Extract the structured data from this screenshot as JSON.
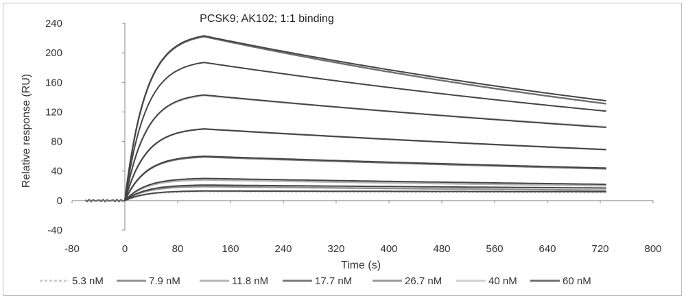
{
  "chart_data": {
    "type": "line",
    "title": "PCSK9; AK102; 1:1 binding",
    "xlabel": "Time (s)",
    "ylabel": "Relative response (RU)",
    "xlim": [
      -80,
      800
    ],
    "ylim": [
      -40,
      240
    ],
    "xticks": [
      -80,
      0,
      80,
      160,
      240,
      320,
      400,
      480,
      560,
      640,
      720,
      800
    ],
    "yticks": [
      -40,
      0,
      40,
      80,
      120,
      160,
      200,
      240
    ],
    "grid": false,
    "legend_position": "bottom",
    "association_end": 120,
    "run_end": 730,
    "series": [
      {
        "name": "5.3 nM",
        "color": "#c8c8c8",
        "dashed": true,
        "plateau": 12,
        "end": 11
      },
      {
        "name": "7.9 nM",
        "color": "#8f8f8f",
        "dashed": false,
        "plateau": 19,
        "end": 14
      },
      {
        "name": "11.8 nM",
        "color": "#b4b4b4",
        "dashed": false,
        "plateau": 28,
        "end": 20
      },
      {
        "name": "17.7 nM",
        "color": "#7a7a7a",
        "dashed": false,
        "plateau": 59,
        "end": 43
      },
      {
        "name": "26.7 nM",
        "color": "#9a9a9a",
        "dashed": false,
        "plateau": 97,
        "end": 69
      },
      {
        "name": "40 nM",
        "color": "#cfcfcf",
        "dashed": false,
        "plateau": 142,
        "end": 100
      },
      {
        "name": "60 nM",
        "color": "#6e6e6e",
        "dashed": false,
        "plateau": 222,
        "end": 131
      }
    ],
    "fits": [
      {
        "plateau": 13,
        "end": 12
      },
      {
        "plateau": 21,
        "end": 17
      },
      {
        "plateau": 30,
        "end": 22
      },
      {
        "plateau": 60,
        "end": 44
      },
      {
        "plateau": 97,
        "end": 69
      },
      {
        "plateau": 143,
        "end": 99
      },
      {
        "plateau": 187,
        "end": 121
      },
      {
        "plateau": 223,
        "end": 135
      }
    ],
    "fit_color": "#444444"
  }
}
